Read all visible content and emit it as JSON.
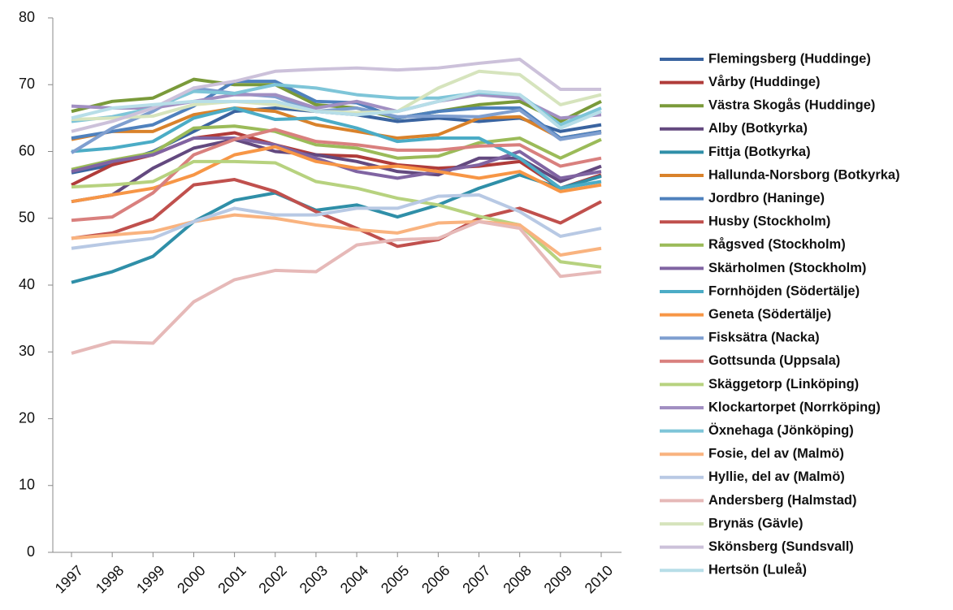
{
  "chart_data": {
    "type": "line",
    "categories": [
      "1997",
      "1998",
      "1999",
      "2000",
      "2001",
      "2002",
      "2003",
      "2004",
      "2005",
      "2006",
      "2007",
      "2008",
      "2009",
      "2010"
    ],
    "ylim": [
      0,
      80
    ],
    "yticks": [
      0,
      10,
      20,
      30,
      40,
      50,
      60,
      70,
      80
    ],
    "grid": false,
    "legend": "right",
    "series": [
      {
        "name": "Flemingsberg (Huddinge)",
        "color": "#3a64a0",
        "values": [
          56.8,
          58,
          60,
          63,
          66,
          66.5,
          66,
          65.5,
          64.5,
          65,
          64.5,
          65,
          63,
          64
        ]
      },
      {
        "name": "Vårby (Huddinge)",
        "color": "#b03c3a",
        "values": [
          55,
          58,
          59.5,
          62,
          62.8,
          61,
          59.5,
          59.3,
          58,
          57.5,
          57.8,
          58.5,
          54.5,
          56.5
        ]
      },
      {
        "name": "Västra Skogås (Huddinge)",
        "color": "#7a9a3a",
        "values": [
          66,
          67.5,
          68,
          70.8,
          70,
          70,
          67,
          66.5,
          65,
          66,
          67,
          67.5,
          64.5,
          67.5
        ]
      },
      {
        "name": "Alby (Botkyrka)",
        "color": "#63497f",
        "values": [
          52.5,
          53.5,
          57.5,
          60.5,
          61.8,
          60,
          59.5,
          58.5,
          57,
          56.5,
          59,
          59,
          55.5,
          57.8
        ]
      },
      {
        "name": "Fittja (Botkyrka)",
        "color": "#2f8fa8",
        "values": [
          40.4,
          42,
          44.3,
          49.5,
          52.7,
          53.8,
          51.2,
          52,
          50.2,
          52,
          54.5,
          56.5,
          54.5,
          56.3
        ]
      },
      {
        "name": "Hallunda-Norsborg (Botkyrka)",
        "color": "#d9822b",
        "values": [
          61.8,
          63,
          63,
          65.5,
          66.5,
          66,
          64,
          63,
          62,
          62.5,
          65,
          65.2,
          62,
          63
        ]
      },
      {
        "name": "Jordbro (Haninge)",
        "color": "#4f81bd",
        "values": [
          62,
          63,
          64,
          66.8,
          70.5,
          70.5,
          67.5,
          67.3,
          65,
          66,
          66.5,
          66.5,
          62,
          63
        ]
      },
      {
        "name": "Husby (Stockholm)",
        "color": "#c0504d",
        "values": [
          47,
          47.8,
          49.9,
          55,
          55.8,
          54,
          51,
          48.5,
          45.8,
          46.8,
          50,
          51.5,
          49.3,
          52.5
        ]
      },
      {
        "name": "Rågsved (Stockholm)",
        "color": "#9bbb59",
        "values": [
          57.3,
          58.7,
          59.8,
          63.5,
          63.8,
          63,
          61,
          60.5,
          59,
          59.3,
          61.3,
          62,
          59,
          61.8
        ]
      },
      {
        "name": "Skärholmen (Stockholm)",
        "color": "#8064a2",
        "values": [
          57,
          58.5,
          59.5,
          62,
          62,
          61,
          59,
          57,
          56,
          57,
          58,
          60,
          56,
          57
        ]
      },
      {
        "name": "Fornhöjden (Södertälje)",
        "color": "#4bacc6",
        "values": [
          60,
          60.5,
          61.5,
          65,
          66.5,
          64.8,
          65,
          63.5,
          61.5,
          62,
          62,
          59,
          54.5,
          55.5
        ]
      },
      {
        "name": "Geneta (Södertälje)",
        "color": "#f79646",
        "values": [
          52.5,
          53.5,
          54.5,
          56.5,
          59.5,
          60.7,
          58.5,
          57.5,
          57.8,
          57,
          56,
          57,
          54,
          55
        ]
      },
      {
        "name": "Fisksätra (Nacka)",
        "color": "#7f9fd0",
        "values": [
          59.8,
          63.5,
          66,
          69.5,
          68.7,
          68.2,
          66,
          66.5,
          65.2,
          65.3,
          65.2,
          66.2,
          61.8,
          62.8
        ]
      },
      {
        "name": "Gottsunda (Uppsala)",
        "color": "#d9807e",
        "values": [
          49.7,
          50.2,
          53.8,
          59.5,
          61.8,
          63.3,
          61.5,
          61,
          60.2,
          60.2,
          60.8,
          61,
          57.8,
          59
        ]
      },
      {
        "name": "Skäggetorp (Linköping)",
        "color": "#b7d27f",
        "values": [
          54.7,
          55,
          55.5,
          58.5,
          58.5,
          58.3,
          55.5,
          54.5,
          53,
          52,
          50.3,
          49,
          43.5,
          42.7
        ]
      },
      {
        "name": "Klockartorpet (Norrköping)",
        "color": "#a18fc2",
        "values": [
          66.8,
          66.5,
          66.5,
          67.5,
          68.5,
          68.5,
          66.5,
          67.5,
          66,
          67.5,
          68.5,
          68,
          65,
          65.5
        ]
      },
      {
        "name": "Öxnehaga (Jönköping)",
        "color": "#7ec5d8",
        "values": [
          64.5,
          65.2,
          66.5,
          69,
          68.7,
          70,
          69.5,
          68.5,
          68,
          68,
          68.8,
          68.5,
          64,
          66.5
        ]
      },
      {
        "name": "Fosie, del av (Malmö)",
        "color": "#f9b37f",
        "values": [
          47,
          47.5,
          48,
          49.5,
          50.5,
          50,
          49,
          48.3,
          47.8,
          49.3,
          49.5,
          49,
          44.5,
          45.5
        ]
      },
      {
        "name": "Hyllie, del av (Malmö)",
        "color": "#b8c9e4",
        "values": [
          45.5,
          46.3,
          47,
          49.5,
          51.5,
          50.5,
          50.5,
          51.5,
          51.5,
          53.3,
          53.5,
          51,
          47.3,
          48.5
        ]
      },
      {
        "name": "Andersberg (Halmstad)",
        "color": "#e6b9b8",
        "values": [
          29.8,
          31.5,
          31.3,
          37.5,
          40.8,
          42.2,
          42,
          46,
          46.8,
          47,
          49.5,
          48.5,
          41.3,
          42
        ]
      },
      {
        "name": "Brynäs (Gävle)",
        "color": "#d6e4bd",
        "values": [
          64.8,
          65,
          65.3,
          67,
          67.5,
          67,
          66,
          65.8,
          66,
          69.5,
          72,
          71.5,
          67,
          68.5
        ]
      },
      {
        "name": "Skönsberg (Sundsvall)",
        "color": "#ccc1da",
        "values": [
          63,
          64.5,
          66.5,
          69.5,
          70.5,
          72,
          72.3,
          72.5,
          72.2,
          72.5,
          73.2,
          73.8,
          69.3,
          69.3
        ]
      },
      {
        "name": "Hertsön (Luleå)",
        "color": "#b7dee8",
        "values": [
          65,
          66.5,
          67,
          67.5,
          67.5,
          67.5,
          66,
          65.5,
          66,
          67.5,
          69,
          68.5,
          63.5,
          66
        ]
      }
    ]
  }
}
